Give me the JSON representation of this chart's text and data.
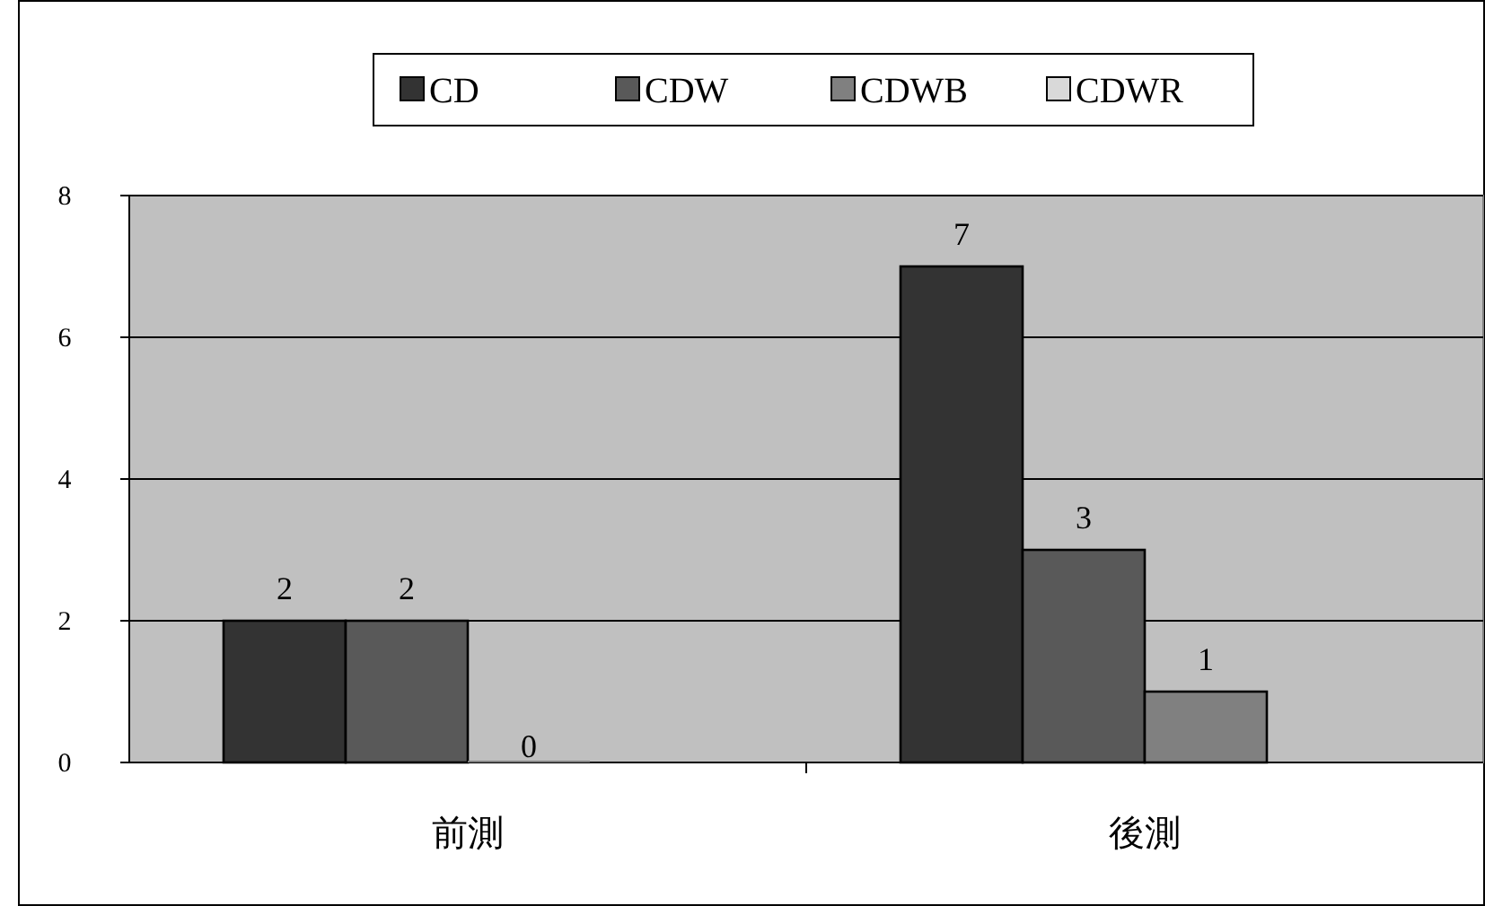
{
  "chart_data": {
    "type": "bar",
    "categories": [
      "前測",
      "後測"
    ],
    "series": [
      {
        "name": "CD",
        "color": "#333333",
        "values": [
          2,
          7
        ]
      },
      {
        "name": "CDW",
        "color": "#595959",
        "values": [
          2,
          3
        ]
      },
      {
        "name": "CDWB",
        "color": "#808080",
        "values": [
          0,
          1
        ]
      },
      {
        "name": "CDWR",
        "color": "#d9d9d9",
        "values": [
          null,
          null
        ]
      }
    ],
    "ylim": [
      0,
      8
    ],
    "yticks": [
      0,
      2,
      4,
      6,
      8
    ],
    "grid": "y",
    "legend": "top",
    "data_labels": true
  }
}
